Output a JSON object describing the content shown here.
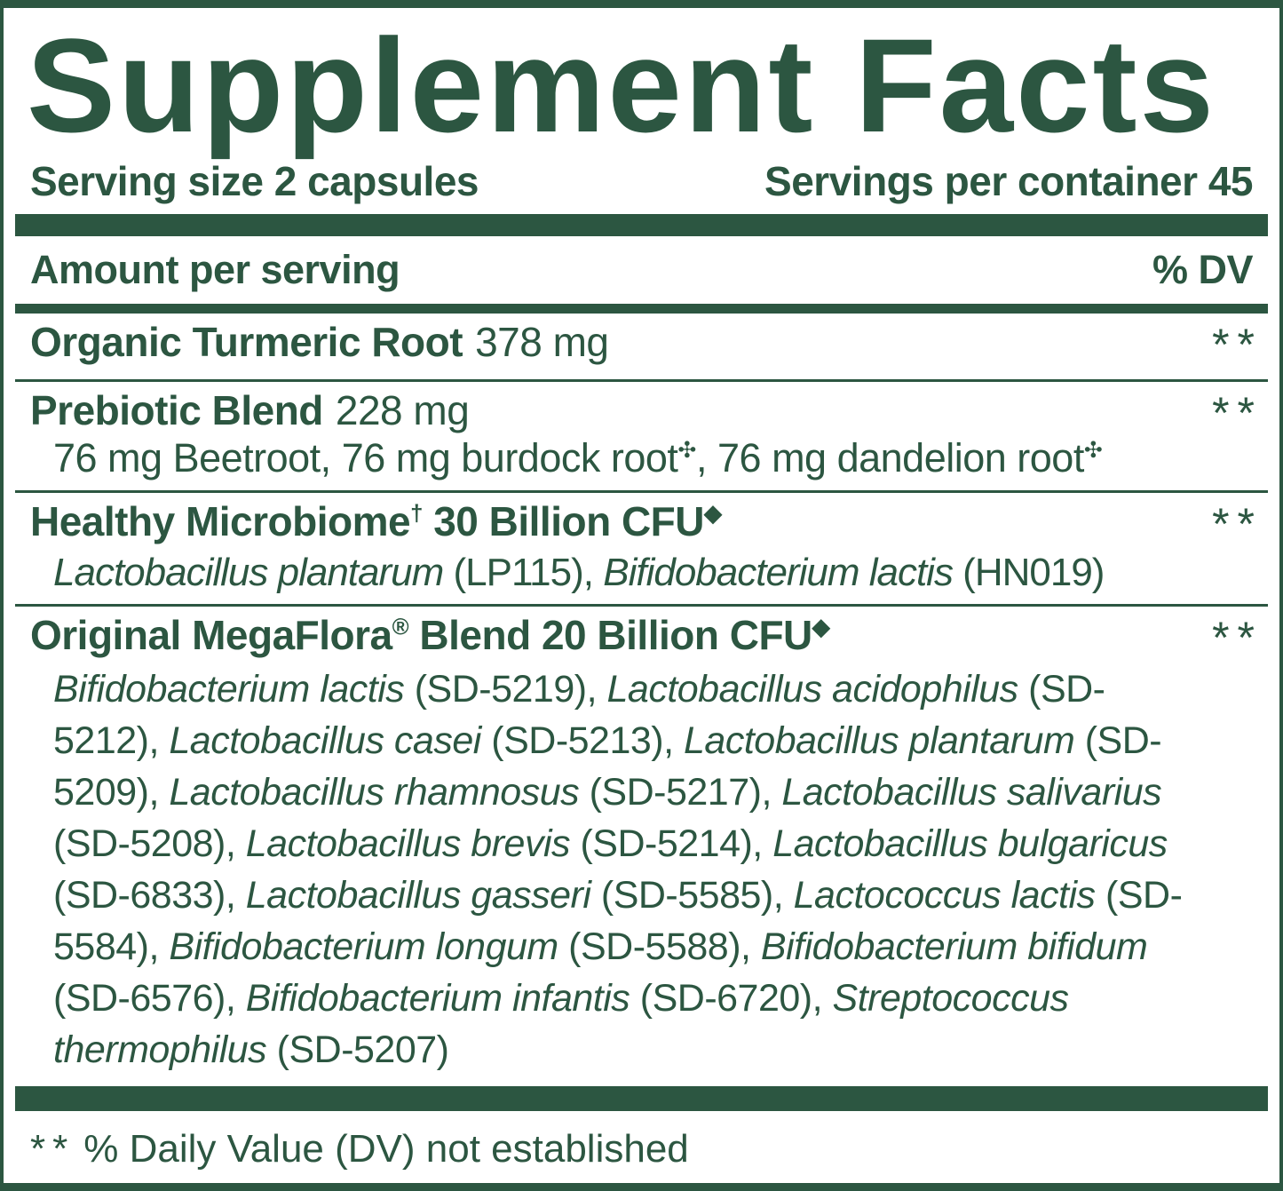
{
  "colors": {
    "green": "#2c5641",
    "background": "#ffffff"
  },
  "label": {
    "title": "Supplement Facts",
    "serving_size": "Serving size 2 capsules",
    "servings_per_container": "Servings per container 45",
    "columns": {
      "amount": "Amount per serving",
      "dv": "% DV"
    },
    "rows": [
      {
        "name_parts": [
          {
            "t": "Organic Turmeric Root"
          }
        ],
        "amount": "378 mg",
        "dv": "**"
      },
      {
        "name_parts": [
          {
            "t": "Prebiotic Blend"
          }
        ],
        "amount": "228 mg",
        "dv": "**",
        "sub_parts": [
          {
            "t": "76 mg Beetroot, 76 mg burdock root"
          },
          {
            "sup": "✣"
          },
          {
            "t": ", 76 mg dandelion root"
          },
          {
            "sup": "✣"
          }
        ]
      },
      {
        "name_parts": [
          {
            "t": "Healthy Microbiome"
          },
          {
            "sup": "†"
          },
          {
            "t": " 30 Billion CFU"
          },
          {
            "sup": "◆"
          }
        ],
        "dv": "**",
        "sub_parts": [
          {
            "i": "Lactobacillus plantarum"
          },
          {
            "t": " (LP115), "
          },
          {
            "i": "Bifidobacterium lactis"
          },
          {
            "t": " (HN019)"
          }
        ]
      },
      {
        "name_parts": [
          {
            "t": "Original MegaFlora"
          },
          {
            "sup": "®"
          },
          {
            "t": " Blend 20 Billion CFU"
          },
          {
            "sup": "◆"
          }
        ],
        "dv": "**",
        "sub_parts": [
          {
            "i": "Bifidobacterium lactis"
          },
          {
            "t": " (SD-5219), "
          },
          {
            "i": "Lactobacillus acidophilus"
          },
          {
            "t": " (SD-5212), "
          },
          {
            "i": "Lactobacillus casei"
          },
          {
            "t": " (SD-5213), "
          },
          {
            "i": "Lactobacillus plantarum"
          },
          {
            "t": " (SD-5209), "
          },
          {
            "i": "Lactobacillus rhamnosus"
          },
          {
            "t": " (SD-5217), "
          },
          {
            "i": "Lactobacillus salivarius"
          },
          {
            "t": " (SD-5208), "
          },
          {
            "i": "Lactobacillus brevis"
          },
          {
            "t": " (SD-5214), "
          },
          {
            "i": "Lactobacillus bulgaricus"
          },
          {
            "t": " (SD-6833), "
          },
          {
            "i": "Lactobacillus gasseri"
          },
          {
            "t": " (SD-5585), "
          },
          {
            "i": "Lactococcus lactis"
          },
          {
            "t": " (SD-5584), "
          },
          {
            "i": "Bifidobacterium longum"
          },
          {
            "t": " (SD-5588), "
          },
          {
            "i": "Bifidobacterium bifidum"
          },
          {
            "t": " (SD-6576), "
          },
          {
            "i": "Bifidobacterium infantis"
          },
          {
            "t": " (SD-6720), "
          },
          {
            "i": "Streptococcus thermophilus"
          },
          {
            "t": " (SD-5207)"
          }
        ]
      }
    ],
    "footnote_mark": "**",
    "footnote_text": "% Daily Value (DV) not established"
  }
}
